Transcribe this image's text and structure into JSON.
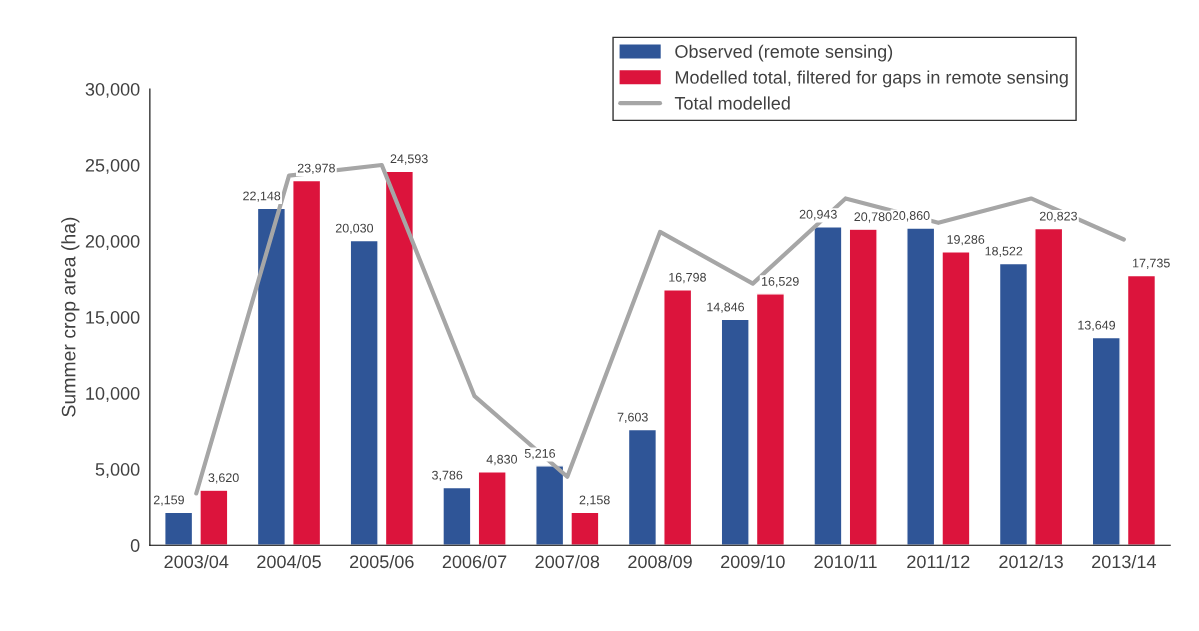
{
  "chart_data": {
    "type": "bar",
    "ylabel": "Summer crop area (ha)",
    "categories": [
      "2003/04",
      "2004/05",
      "2005/06",
      "2006/07",
      "2007/08",
      "2008/09",
      "2009/10",
      "2010/11",
      "2011/12",
      "2012/13",
      "2013/14"
    ],
    "series": [
      {
        "name": "Observed (remote sensing)",
        "color": "#2f5597",
        "values": [
          2159,
          22148,
          20030,
          3786,
          5216,
          7603,
          14846,
          20943,
          20860,
          18522,
          13649
        ],
        "value_labels": [
          "2,159",
          "22,148",
          "20,030",
          "3,786",
          "5,216",
          "7,603",
          "14,846",
          "20,943",
          "20,860",
          "18,522",
          "13,649"
        ]
      },
      {
        "name": "Modelled total, filtered for gaps in remote sensing",
        "color": "#dc143c",
        "values": [
          3620,
          23978,
          24593,
          4830,
          2158,
          16798,
          16529,
          20780,
          19286,
          20823,
          17735
        ],
        "value_labels": [
          "3,620",
          "23,978",
          "24,593",
          "4,830",
          "2,158",
          "16,798",
          "16,529",
          "20,780",
          "19,286",
          "20,823",
          "17,735"
        ]
      },
      {
        "name": "Total modelled",
        "type": "line",
        "color": "#a6a6a6",
        "values": [
          3400,
          24300,
          25000,
          9800,
          4500,
          20600,
          17200,
          22800,
          21200,
          22800,
          20100
        ]
      }
    ],
    "ylim": [
      0,
      30000
    ],
    "yticks": [
      {
        "value": 0,
        "label": "0"
      },
      {
        "value": 5000,
        "label": "5,000"
      },
      {
        "value": 10000,
        "label": "10,000"
      },
      {
        "value": 15000,
        "label": "15,000"
      },
      {
        "value": 20000,
        "label": "20,000"
      },
      {
        "value": 25000,
        "label": "25,000"
      },
      {
        "value": 30000,
        "label": "30,000"
      }
    ],
    "grid": false,
    "legend": "top right"
  }
}
